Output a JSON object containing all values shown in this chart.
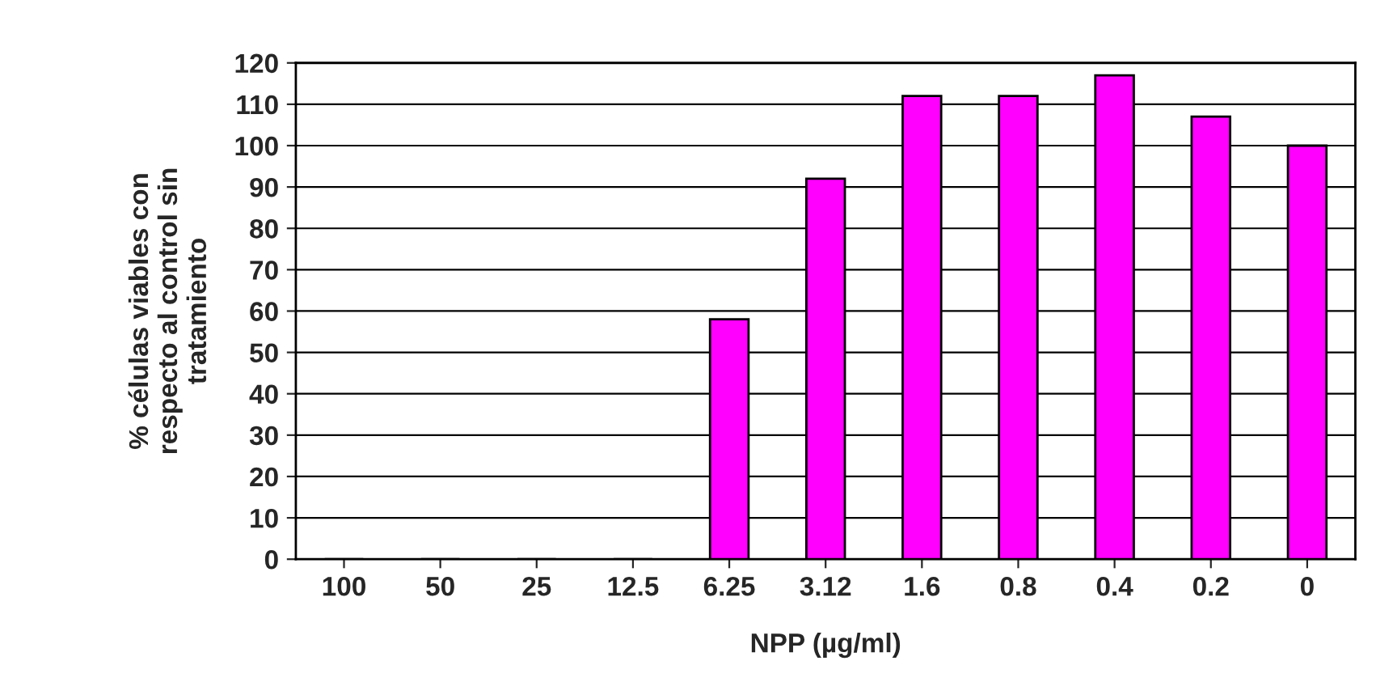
{
  "chart_data": {
    "type": "bar",
    "xlabel": "NPP (µg/ml)",
    "ylabel": "% células viables con\nrespecto al control sin\ntratamiento",
    "categories": [
      "100",
      "50",
      "25",
      "12.5",
      "6.25",
      "3.12",
      "1.6",
      "0.8",
      "0.4",
      "0.2",
      "0"
    ],
    "values": [
      0,
      0,
      0,
      0,
      58,
      92,
      112,
      112,
      117,
      107,
      100
    ],
    "color": "#ff00ff",
    "ylim": [
      0,
      120
    ],
    "yticks": [
      0,
      10,
      20,
      30,
      40,
      50,
      60,
      70,
      80,
      90,
      100,
      110,
      120
    ],
    "grid": "y",
    "legend": false
  }
}
